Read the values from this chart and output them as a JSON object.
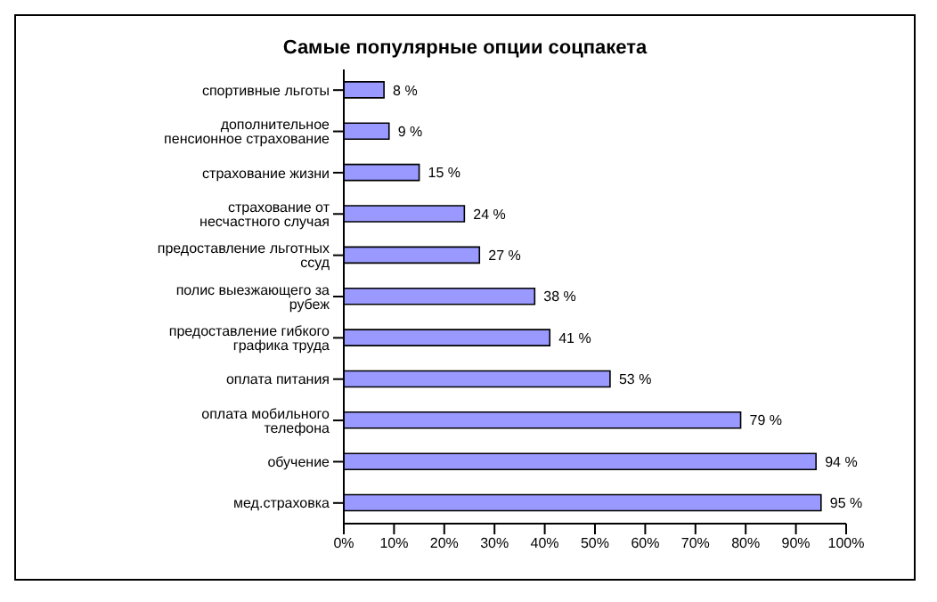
{
  "chart_data": {
    "type": "bar",
    "orientation": "horizontal",
    "title": "Самые популярные опции соцпакета",
    "categories": [
      "спортивные льготы",
      "дополнительное пенсионное страхование",
      "страхование жизни",
      "страхование от несчастного случая",
      "предоставление льготных ссуд",
      "полис выезжающего за рубеж",
      "предоставление гибкого графика труда",
      "оплата питания",
      "оплата мобильного телефона",
      "обучение",
      "мед.страховка"
    ],
    "values": [
      8,
      9,
      15,
      24,
      27,
      38,
      41,
      53,
      79,
      94,
      95
    ],
    "value_labels": [
      "8 %",
      "9 %",
      "15 %",
      "24 %",
      "27 %",
      "38 %",
      "41 %",
      "53 %",
      "79 %",
      "94 %",
      "95 %"
    ],
    "color": "#9999ff",
    "xlim": [
      0,
      100
    ],
    "xticks": [
      {
        "value": 0,
        "label": "0%"
      },
      {
        "value": 10,
        "label": "10%"
      },
      {
        "value": 20,
        "label": "20%"
      },
      {
        "value": 30,
        "label": "30%"
      },
      {
        "value": 40,
        "label": "40%"
      },
      {
        "value": 50,
        "label": "50%"
      },
      {
        "value": 60,
        "label": "60%"
      },
      {
        "value": 70,
        "label": "70%"
      },
      {
        "value": 80,
        "label": "80%"
      },
      {
        "value": 90,
        "label": "90%"
      },
      {
        "value": 100,
        "label": "100%"
      }
    ],
    "grid": false,
    "legend": false
  }
}
